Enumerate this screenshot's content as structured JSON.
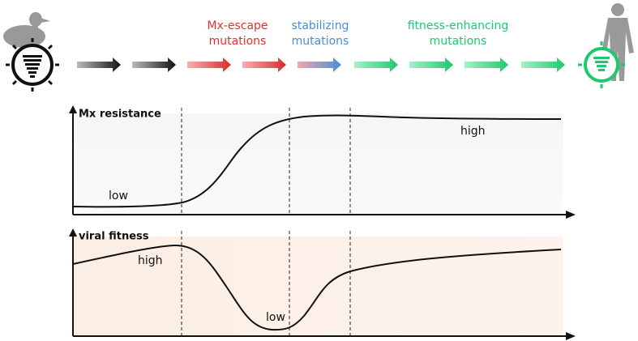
{
  "header": {
    "mutation_labels": [
      {
        "lines": [
          "Mx-escape",
          "mutations"
        ]
      },
      {
        "lines": [
          "stabilizing",
          "mutations"
        ]
      },
      {
        "lines": [
          "fitness-enhancing",
          "mutations"
        ]
      }
    ]
  },
  "panels": [
    {
      "title": "Mx resistance",
      "labels": [
        "low",
        "high"
      ]
    },
    {
      "title": "viral fitness",
      "labels": [
        "high",
        "low"
      ]
    }
  ]
}
